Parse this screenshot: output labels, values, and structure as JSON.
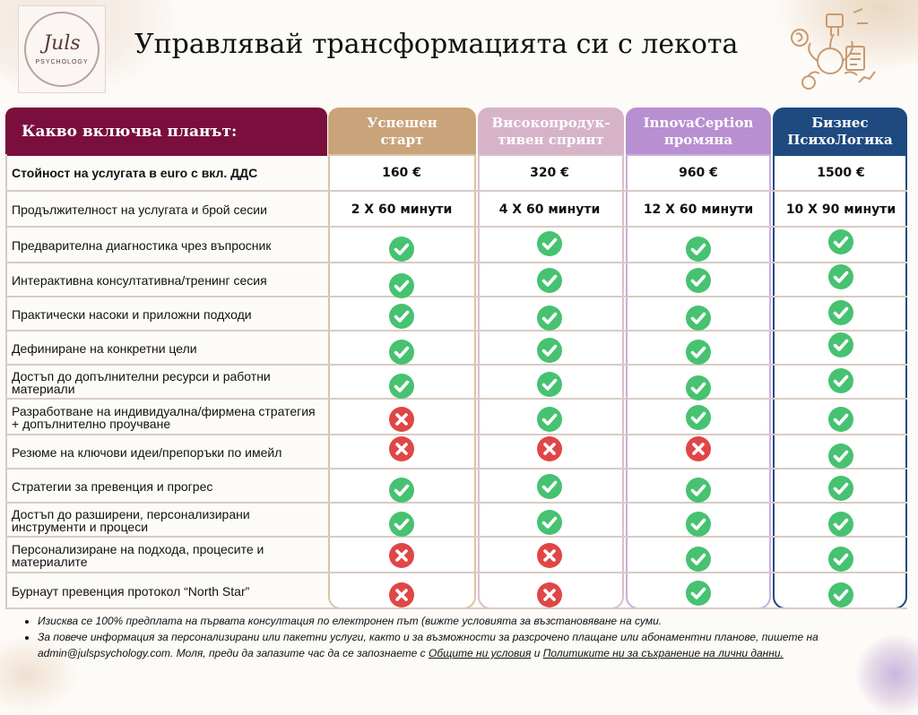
{
  "brand": {
    "logo_main": "Juls",
    "logo_sub": "PSYCHOLOGY"
  },
  "title": "Управлявай трансформацията си с лекота",
  "colors": {
    "maroon": "#7a0f3d",
    "tan": "#c9a47a",
    "pink": "#d7b3c7",
    "lavender": "#b88fd0",
    "navy": "#1e4a80",
    "check": "#46c271",
    "cross": "#e04646"
  },
  "table": {
    "header_label": "Какво включва планът:",
    "plans": [
      {
        "name_line1": "Успешен",
        "name_line2": "старт"
      },
      {
        "name_line1": "Високопродук-",
        "name_line2": "тивен спринт"
      },
      {
        "name_line1": "InnovaCeption",
        "name_line2": "промяна"
      },
      {
        "name_line1": "Бизнес",
        "name_line2": "ПсихоЛогика"
      }
    ],
    "rows": [
      {
        "label": "Стойност на услугата в euro с вкл. ДДС",
        "values": [
          "160 €",
          "320 €",
          "960 €",
          "1500 €"
        ]
      },
      {
        "label": "Продължителност на услугата и брой сесии",
        "values": [
          "2 X 60 минути",
          "4 X 60 минути",
          "12  X 60 минути",
          "10  X  90 минути"
        ]
      },
      {
        "label": "Предварителна диагностика чрез въпросник",
        "marks": [
          "check",
          "check",
          "check",
          "check"
        ]
      },
      {
        "label": "Интерактивна консултативна/тренинг сесия",
        "marks": [
          "check",
          "check",
          "check",
          "check"
        ]
      },
      {
        "label": "Практически насоки и приложни подходи",
        "marks": [
          "check",
          "check",
          "check",
          "check"
        ]
      },
      {
        "label": "Дефиниране на конкретни цели",
        "marks": [
          "check",
          "check",
          "check",
          "check"
        ]
      },
      {
        "label": "Достъп до допълнителни ресурси и работни материали",
        "marks": [
          "check",
          "check",
          "check",
          "check"
        ]
      },
      {
        "label": "Разработване на индивидуална/фирмена стратегия + допълнително проучване",
        "marks": [
          "cross",
          "check",
          "check",
          "check"
        ]
      },
      {
        "label": "Резюме на ключови идеи/препоръки по имейл",
        "marks": [
          "cross",
          "cross",
          "cross",
          "check"
        ]
      },
      {
        "label": "Стратегии за превенция и прогрес",
        "marks": [
          "check",
          "check",
          "check",
          "check"
        ]
      },
      {
        "label": "Достъп до разширени, персонализирани инструменти и процеси",
        "marks": [
          "check",
          "check",
          "check",
          "check"
        ]
      },
      {
        "label": "Персонализиране на подхода, процесите и материалите",
        "marks": [
          "cross",
          "cross",
          "check",
          "check"
        ]
      },
      {
        "label": "Бурнаут превенция протокол “North Star”",
        "marks": [
          "cross",
          "cross",
          "check",
          "check"
        ]
      }
    ]
  },
  "notes": {
    "note1": "Изисква се 100%  предплата на първата консултация по електронен път (вижте условията за възстановяване на суми.",
    "note2_text": "За повече информация за персонализирани или пакетни услуги, както и за възможности за разсрочено плащане или абонаментни планове, пишете на admin@julspsychology.com. Моля, преди да запазите час да се запознаете с ",
    "link_terms": "Общите ни условия",
    "and": " и ",
    "link_privacy": "Политиките ни за съхранение на лични данни."
  }
}
